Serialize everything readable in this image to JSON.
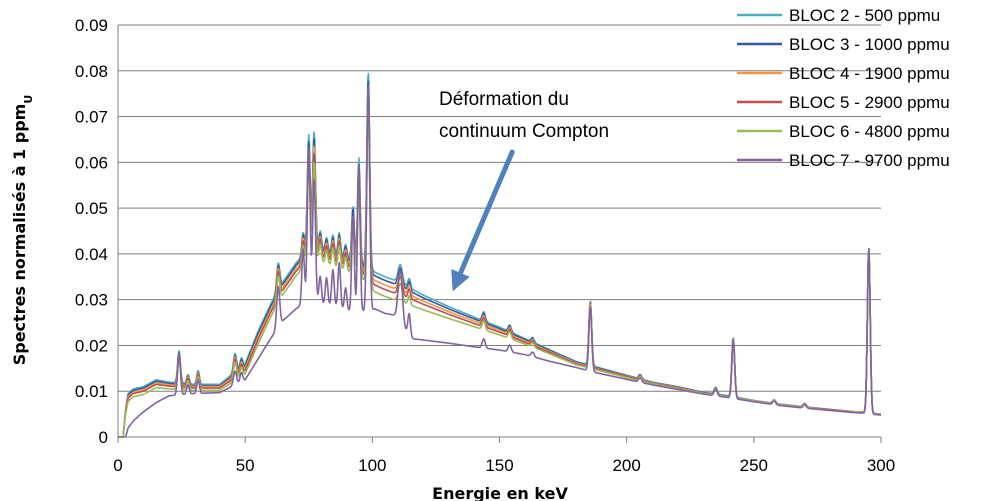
{
  "chart_data": {
    "type": "line",
    "title": "",
    "xlabel": "Energie en keV",
    "ylabel": "Spectres normalisés à 1 ppm",
    "ylabel_subscript": "U",
    "xlim": [
      0,
      300
    ],
    "ylim": [
      0,
      0.09
    ],
    "x_ticks": [
      "0",
      "50",
      "100",
      "150",
      "200",
      "250",
      "300"
    ],
    "y_ticks": [
      "0",
      "0.01",
      "0.02",
      "0.03",
      "0.04",
      "0.05",
      "0.06",
      "0.07",
      "0.08",
      "0.09"
    ],
    "grid": "horizontal",
    "legend_position": "top-right",
    "annotation": {
      "lines": [
        "Déformation du",
        "continuum Compton"
      ],
      "arrow_from": [
        155,
        0.0325
      ],
      "arrow_to": [
        130,
        0.0305
      ]
    },
    "continuum_x": [
      2,
      3,
      4,
      6,
      10,
      15,
      20,
      30,
      40,
      50,
      55,
      60,
      65,
      70,
      75,
      80,
      85,
      90,
      95,
      99,
      101,
      105,
      110,
      115,
      120,
      130,
      140,
      150,
      160,
      170,
      180,
      190,
      200,
      210,
      220,
      230,
      240,
      250,
      260,
      270,
      280,
      290,
      294,
      296,
      300
    ],
    "peaks": [
      {
        "e": 24.0,
        "w": 0.55
      },
      {
        "e": 27.5,
        "w": 0.5
      },
      {
        "e": 31.5,
        "w": 0.5
      },
      {
        "e": 46.0,
        "w": 0.6
      },
      {
        "e": 48.5,
        "w": 0.5
      },
      {
        "e": 63.0,
        "w": 0.6
      },
      {
        "e": 72.8,
        "w": 0.5
      },
      {
        "e": 75.0,
        "w": 0.55
      },
      {
        "e": 77.1,
        "w": 0.55
      },
      {
        "e": 79.5,
        "w": 0.5
      },
      {
        "e": 82.0,
        "w": 0.5
      },
      {
        "e": 84.5,
        "w": 0.5
      },
      {
        "e": 87.0,
        "w": 0.5
      },
      {
        "e": 89.5,
        "w": 0.5
      },
      {
        "e": 92.4,
        "w": 0.5
      },
      {
        "e": 94.7,
        "w": 0.5
      },
      {
        "e": 98.4,
        "w": 0.55
      },
      {
        "e": 111.0,
        "w": 0.8
      },
      {
        "e": 114.5,
        "w": 0.5
      },
      {
        "e": 143.8,
        "w": 0.6
      },
      {
        "e": 154.0,
        "w": 0.6
      },
      {
        "e": 163.0,
        "w": 0.6
      },
      {
        "e": 185.7,
        "w": 0.55
      },
      {
        "e": 205.3,
        "w": 0.6
      },
      {
        "e": 235.0,
        "w": 0.6
      },
      {
        "e": 241.9,
        "w": 0.55
      },
      {
        "e": 258.0,
        "w": 0.6
      },
      {
        "e": 270.0,
        "w": 0.6
      },
      {
        "e": 295.2,
        "w": 0.55
      }
    ],
    "series": [
      {
        "name": "BLOC 2 - 500 ppmu",
        "color": "#4BACC6",
        "continuum": [
          0.0,
          0.006,
          0.0095,
          0.0105,
          0.011,
          0.0125,
          0.012,
          0.0115,
          0.0115,
          0.016,
          0.023,
          0.029,
          0.034,
          0.038,
          0.041,
          0.041,
          0.04,
          0.039,
          0.038,
          0.037,
          0.036,
          0.035,
          0.034,
          0.0325,
          0.031,
          0.0285,
          0.0262,
          0.024,
          0.0215,
          0.019,
          0.0165,
          0.015,
          0.0135,
          0.012,
          0.011,
          0.0098,
          0.009,
          0.008,
          0.0072,
          0.0066,
          0.006,
          0.0055,
          0.0054,
          0.0052,
          0.005
        ],
        "peaks": [
          0.007,
          0.002,
          0.003,
          0.004,
          0.002,
          0.006,
          0.005,
          0.025,
          0.026,
          0.004,
          0.003,
          0.004,
          0.005,
          0.003,
          0.012,
          0.023,
          0.043,
          0.004,
          0.002,
          0.002,
          0.0015,
          0.001,
          0.014,
          0.001,
          0.0015,
          0.013,
          0.0008,
          0.0008,
          0.036
        ]
      },
      {
        "name": "BLOC 3 - 1000 ppmu",
        "color": "#2E5C9E",
        "continuum": [
          0.0,
          0.0058,
          0.0092,
          0.0102,
          0.0107,
          0.0122,
          0.0117,
          0.0112,
          0.0112,
          0.0155,
          0.0225,
          0.0285,
          0.0335,
          0.0375,
          0.0405,
          0.0405,
          0.0395,
          0.0385,
          0.0375,
          0.0362,
          0.0352,
          0.0342,
          0.0332,
          0.0318,
          0.0304,
          0.028,
          0.0258,
          0.0237,
          0.0213,
          0.0188,
          0.0164,
          0.0149,
          0.0134,
          0.0119,
          0.0109,
          0.0097,
          0.0089,
          0.0079,
          0.0071,
          0.0065,
          0.006,
          0.0055,
          0.0054,
          0.0052,
          0.005
        ],
        "peaks": [
          0.007,
          0.002,
          0.003,
          0.004,
          0.002,
          0.006,
          0.005,
          0.024,
          0.025,
          0.004,
          0.003,
          0.004,
          0.005,
          0.003,
          0.012,
          0.022,
          0.042,
          0.004,
          0.002,
          0.002,
          0.0015,
          0.001,
          0.014,
          0.001,
          0.0015,
          0.013,
          0.0008,
          0.0008,
          0.036
        ]
      },
      {
        "name": "BLOC 4 - 1900 ppmu",
        "color": "#F79646",
        "continuum": [
          0.0,
          0.0056,
          0.0088,
          0.0098,
          0.0103,
          0.0118,
          0.0114,
          0.011,
          0.011,
          0.015,
          0.0218,
          0.0278,
          0.0328,
          0.0368,
          0.0398,
          0.0398,
          0.0388,
          0.0378,
          0.0368,
          0.0352,
          0.0342,
          0.0332,
          0.0322,
          0.031,
          0.0297,
          0.0274,
          0.0253,
          0.0233,
          0.021,
          0.0186,
          0.0162,
          0.0147,
          0.0133,
          0.0118,
          0.0108,
          0.0096,
          0.0088,
          0.0079,
          0.0071,
          0.0065,
          0.0059,
          0.0055,
          0.0054,
          0.0051,
          0.005
        ],
        "peaks": [
          0.007,
          0.002,
          0.003,
          0.004,
          0.002,
          0.006,
          0.005,
          0.023,
          0.024,
          0.004,
          0.003,
          0.004,
          0.005,
          0.003,
          0.011,
          0.021,
          0.041,
          0.004,
          0.002,
          0.002,
          0.0015,
          0.001,
          0.014,
          0.001,
          0.0015,
          0.013,
          0.0008,
          0.0008,
          0.036
        ]
      },
      {
        "name": "BLOC 5 - 2900 ppmu",
        "color": "#C0504D",
        "continuum": [
          0.0,
          0.0054,
          0.0085,
          0.0095,
          0.01,
          0.0115,
          0.0111,
          0.0107,
          0.0107,
          0.0145,
          0.0212,
          0.0272,
          0.0322,
          0.0362,
          0.0392,
          0.0392,
          0.0382,
          0.0372,
          0.0362,
          0.0342,
          0.0332,
          0.0322,
          0.0312,
          0.0302,
          0.029,
          0.0268,
          0.0248,
          0.0229,
          0.0207,
          0.0184,
          0.016,
          0.0146,
          0.0132,
          0.0117,
          0.0107,
          0.0095,
          0.0087,
          0.0078,
          0.007,
          0.0064,
          0.0059,
          0.0054,
          0.0053,
          0.0051,
          0.005
        ],
        "peaks": [
          0.007,
          0.002,
          0.003,
          0.004,
          0.002,
          0.006,
          0.005,
          0.022,
          0.023,
          0.004,
          0.003,
          0.004,
          0.005,
          0.003,
          0.011,
          0.02,
          0.04,
          0.004,
          0.002,
          0.002,
          0.0015,
          0.001,
          0.014,
          0.001,
          0.0015,
          0.013,
          0.0008,
          0.0008,
          0.036
        ]
      },
      {
        "name": "BLOC 6 - 4800 ppmu",
        "color": "#9BBB59",
        "continuum": [
          0.0,
          0.005,
          0.0078,
          0.0088,
          0.0093,
          0.0108,
          0.0105,
          0.0102,
          0.0102,
          0.0138,
          0.0202,
          0.0262,
          0.0312,
          0.0352,
          0.0382,
          0.0382,
          0.0372,
          0.0362,
          0.0352,
          0.0327,
          0.0317,
          0.0307,
          0.0297,
          0.0288,
          0.0278,
          0.0259,
          0.0241,
          0.0223,
          0.0203,
          0.0181,
          0.0158,
          0.0144,
          0.013,
          0.0116,
          0.0106,
          0.0095,
          0.0087,
          0.0078,
          0.007,
          0.0064,
          0.0058,
          0.0054,
          0.0053,
          0.0051,
          0.005
        ],
        "peaks": [
          0.007,
          0.002,
          0.003,
          0.004,
          0.002,
          0.006,
          0.005,
          0.021,
          0.022,
          0.004,
          0.003,
          0.004,
          0.005,
          0.003,
          0.011,
          0.019,
          0.039,
          0.004,
          0.002,
          0.002,
          0.0015,
          0.001,
          0.014,
          0.001,
          0.0015,
          0.013,
          0.0008,
          0.0008,
          0.036
        ]
      },
      {
        "name": "BLOC 7 - 9700 ppmu",
        "color": "#8064A2",
        "continuum": [
          0.0,
          0.0,
          0.002,
          0.0035,
          0.0055,
          0.0075,
          0.009,
          0.0095,
          0.0097,
          0.0125,
          0.017,
          0.0215,
          0.0255,
          0.028,
          0.03,
          0.029,
          0.0285,
          0.0275,
          0.0275,
          0.0275,
          0.028,
          0.027,
          0.0265,
          0.0215,
          0.0212,
          0.0205,
          0.0197,
          0.019,
          0.018,
          0.0165,
          0.0152,
          0.0138,
          0.0126,
          0.0114,
          0.0104,
          0.0094,
          0.0086,
          0.0077,
          0.0069,
          0.0063,
          0.0058,
          0.0053,
          0.0052,
          0.005,
          0.0048
        ],
        "peaks": [
          0.009,
          0.002,
          0.003,
          0.003,
          0.002,
          0.009,
          0.012,
          0.033,
          0.027,
          0.006,
          0.006,
          0.008,
          0.01,
          0.005,
          0.021,
          0.032,
          0.05,
          0.011,
          0.005,
          0.002,
          0.0015,
          0.001,
          0.014,
          0.001,
          0.0015,
          0.013,
          0.0008,
          0.0008,
          0.036
        ]
      }
    ]
  }
}
